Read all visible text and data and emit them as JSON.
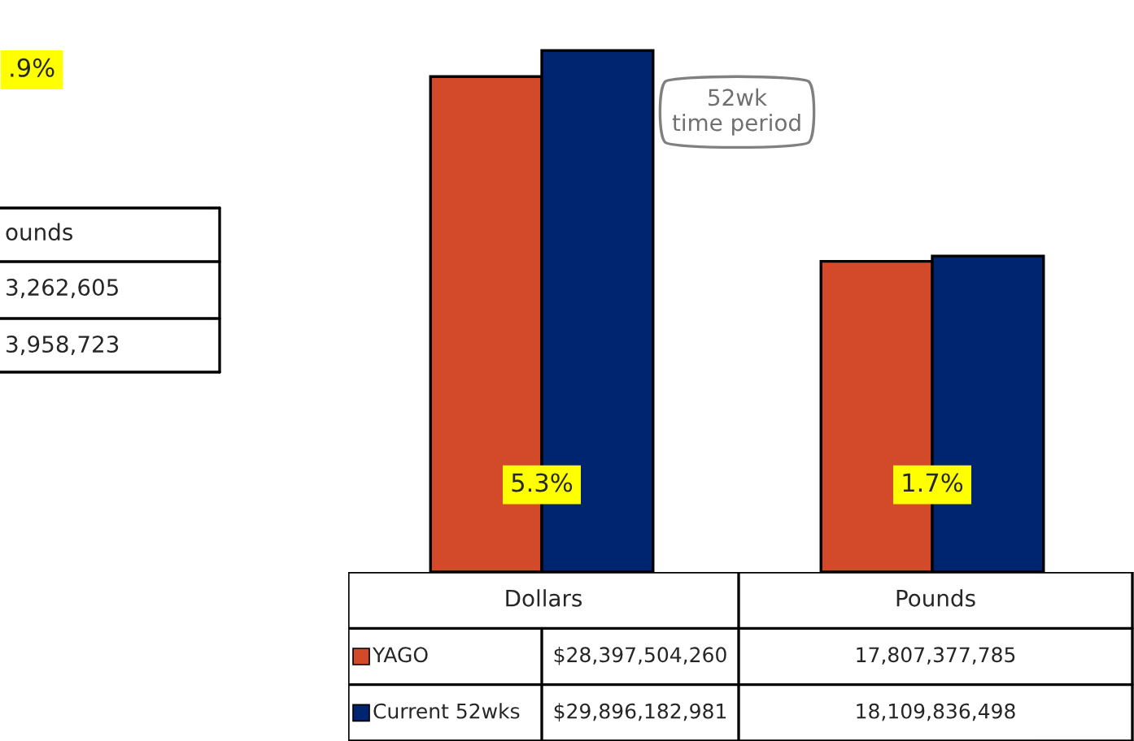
{
  "chart_data": [
    {
      "type": "bar",
      "categories": [
        "Dollars",
        "Pounds"
      ],
      "series": [
        {
          "name": "YAGO",
          "color": "#d24a2a",
          "values": [
            28397504260,
            17807377785
          ],
          "value_labels": [
            "$28,397,504,260",
            "17,807,377,785"
          ]
        },
        {
          "name": "Current 52wks",
          "color": "#002570",
          "values": [
            29896182981,
            18109836498
          ],
          "value_labels": [
            "$29,896,182,981",
            "18,109,836,498"
          ]
        }
      ],
      "annotations": [
        {
          "text": "5.3%",
          "x": "Dollars",
          "y": 5000000000
        },
        {
          "text": "1.7%",
          "x": "Pounds",
          "y": 5000000000
        },
        "52wk\ntime period"
      ],
      "grid": false,
      "tick_labels": false,
      "legend": "bottom left"
    },
    {
      "type": "other",
      "annotations": [
        ".9%",
        "ounds",
        "3,262,605",
        "3,958,723"
      ]
    }
  ]
}
